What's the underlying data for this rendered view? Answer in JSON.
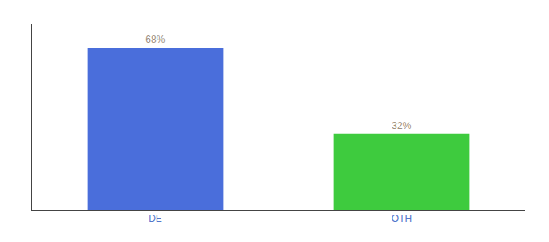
{
  "chart_data": {
    "type": "bar",
    "categories": [
      "DE",
      "OTH"
    ],
    "values": [
      68,
      32
    ],
    "value_labels": [
      "68%",
      "32%"
    ],
    "colors": [
      "#4a6edb",
      "#3ecb3e"
    ],
    "ylim": [
      0,
      78
    ],
    "data_labels": true,
    "tick_labels": "x",
    "grid": false
  }
}
